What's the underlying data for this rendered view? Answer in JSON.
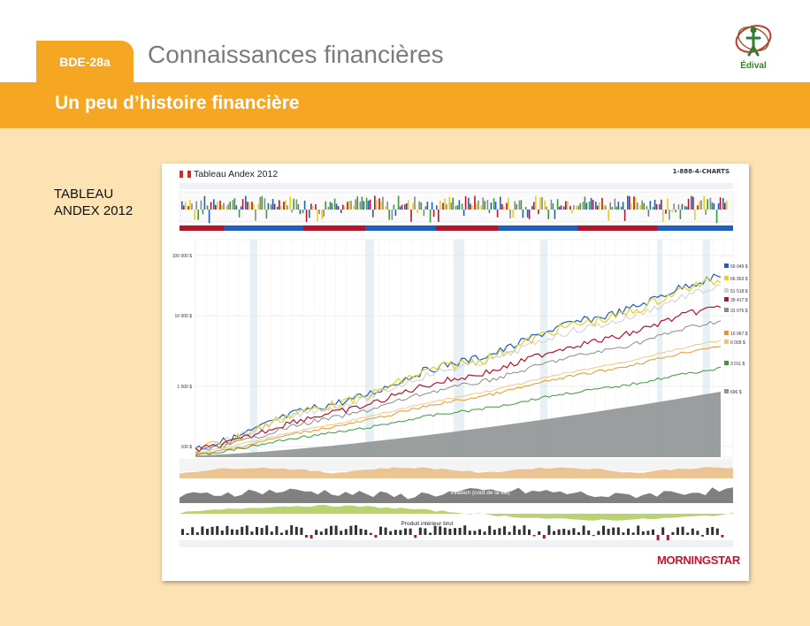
{
  "header": {
    "badge": "BDE-28a",
    "title": "Connaissances financières",
    "logo_text": "Édival"
  },
  "banner": {
    "title": "Un peu d’histoire financière"
  },
  "side_label": {
    "line1": "TABLEAU",
    "line2": "ANDEX 2012"
  },
  "chart_image": {
    "title": "Tableau Andex 2012",
    "phone": "1-888-4-CHARTS",
    "y_ticks": [
      "100 000 $",
      "10 000 $",
      "1 000 $",
      "100 $"
    ],
    "end_values": [
      "69 049 $",
      "66 953 $",
      "51 518 $",
      "39 417 $",
      "31 076 $",
      "10 067 $",
      "6 009 $",
      "3 011 $",
      "696 $"
    ],
    "sub_labels": [
      "Inflation (coût de la vie)",
      "Dollar canadien exprimé en USD",
      "Produit intérieur brut"
    ],
    "brand": "MORNINGSTAR"
  },
  "colors": {
    "orange": "#f5a623",
    "page_bg": "#fde3b4",
    "series_blue": "#1f5fbf",
    "series_yellow": "#e6d21a",
    "series_red": "#b3152b",
    "series_gray": "#8a8a8a",
    "series_orange": "#e8952e",
    "series_green": "#3c9a3c"
  }
}
